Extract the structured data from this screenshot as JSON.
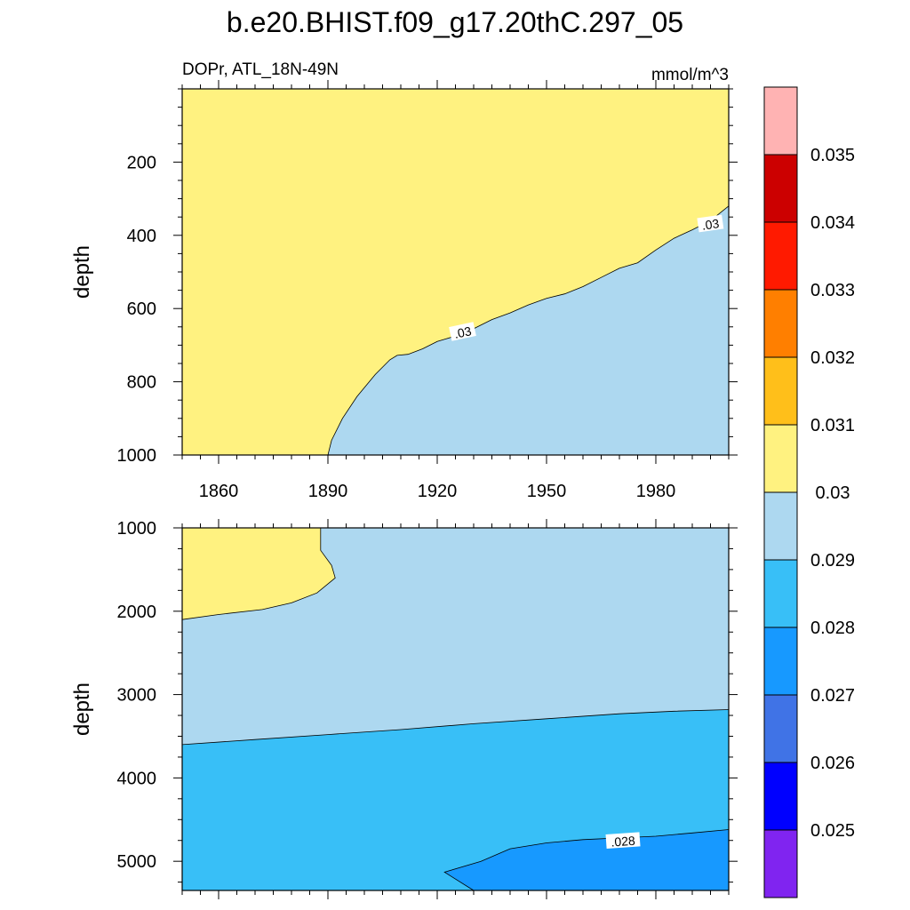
{
  "chart_data": {
    "type": "contour",
    "title": "b.e20.BHIST.f09_g17.20thC.297_05",
    "subtitle_left": "DOPr, ATL_18N-49N",
    "subtitle_right": "mmol/m^3",
    "ylabel": "depth",
    "x_range": [
      1850,
      2000
    ],
    "x_ticks": [
      "1860",
      "1890",
      "1920",
      "1950",
      "1980"
    ],
    "upper_panel": {
      "y_range": [
        0,
        1000
      ],
      "y_ticks": [
        "200",
        "400",
        "600",
        "800",
        "1000"
      ],
      "contour_labels": [
        ".03",
        ".03"
      ],
      "boundary_0030": [
        [
          1890,
          1000
        ],
        [
          1891,
          960
        ],
        [
          1894,
          900
        ],
        [
          1898,
          840
        ],
        [
          1903,
          780
        ],
        [
          1907,
          740
        ],
        [
          1909,
          728
        ],
        [
          1912,
          725
        ],
        [
          1916,
          710
        ],
        [
          1920,
          690
        ],
        [
          1925,
          675
        ],
        [
          1930,
          655
        ],
        [
          1935,
          630
        ],
        [
          1940,
          612
        ],
        [
          1945,
          590
        ],
        [
          1950,
          572
        ],
        [
          1955,
          560
        ],
        [
          1960,
          540
        ],
        [
          1965,
          515
        ],
        [
          1970,
          490
        ],
        [
          1975,
          475
        ],
        [
          1980,
          440
        ],
        [
          1985,
          408
        ],
        [
          1990,
          385
        ],
        [
          1995,
          360
        ],
        [
          2000,
          320
        ]
      ]
    },
    "lower_panel": {
      "y_range": [
        1000,
        5350
      ],
      "y_ticks": [
        "1000",
        "2000",
        "3000",
        "4000",
        "5000"
      ],
      "contour_labels": [
        ".028"
      ],
      "boundary_0030": [
        [
          1850,
          2100
        ],
        [
          1860,
          2040
        ],
        [
          1872,
          1980
        ],
        [
          1880,
          1900
        ],
        [
          1887,
          1780
        ],
        [
          1892,
          1600
        ],
        [
          1891,
          1450
        ],
        [
          1888,
          1270
        ],
        [
          1888,
          1000
        ]
      ],
      "boundary_0029": [
        [
          1850,
          3600
        ],
        [
          1870,
          3540
        ],
        [
          1890,
          3480
        ],
        [
          1910,
          3420
        ],
        [
          1930,
          3350
        ],
        [
          1950,
          3290
        ],
        [
          1970,
          3230
        ],
        [
          1985,
          3200
        ],
        [
          2000,
          3180
        ]
      ],
      "boundary_0028": [
        [
          1922,
          5130
        ],
        [
          1932,
          5000
        ],
        [
          1940,
          4850
        ],
        [
          1950,
          4780
        ],
        [
          1960,
          4740
        ],
        [
          1970,
          4720
        ],
        [
          1980,
          4700
        ],
        [
          1990,
          4660
        ],
        [
          2000,
          4620
        ]
      ]
    },
    "legend": {
      "placement": "right",
      "labels": [
        "0.035",
        "0.034",
        "0.033",
        "0.032",
        "0.031",
        "0.03",
        "0.029",
        "0.028",
        "0.027",
        "0.026",
        "0.025"
      ],
      "colors": [
        "#FFB3B3",
        "#CC0000",
        "#FF1A00",
        "#FF7F00",
        "#FFBF1A",
        "#FFF280",
        "#ADD8F0",
        "#38BFF7",
        "#1799FF",
        "#4073E6",
        "#0000FF",
        "#8024F0"
      ]
    }
  }
}
